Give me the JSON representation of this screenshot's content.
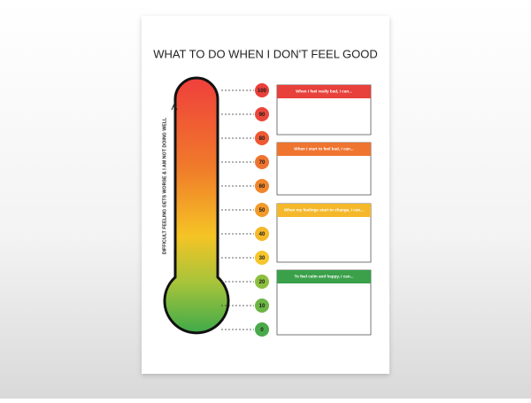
{
  "title": "WHAT TO DO WHEN I DON'T FEEL GOOD",
  "side_label": "DIFFICULT FEELING GETS WORSE & I AM NOT DOING WELL",
  "scale": [
    {
      "label": 100,
      "color": "#e8403a"
    },
    {
      "label": 90,
      "color": "#e9473a"
    },
    {
      "label": 80,
      "color": "#ec5a33"
    },
    {
      "label": 70,
      "color": "#ef7430"
    },
    {
      "label": 60,
      "color": "#f0862c"
    },
    {
      "label": 50,
      "color": "#f29a2a"
    },
    {
      "label": 40,
      "color": "#f4b82a"
    },
    {
      "label": 30,
      "color": "#f5c62e"
    },
    {
      "label": 20,
      "color": "#8cbf3f"
    },
    {
      "label": 10,
      "color": "#6db545"
    },
    {
      "label": 0,
      "color": "#4aa94a"
    }
  ],
  "sections": [
    {
      "header": "When I feel really bad, I can...",
      "color": "#e8403a"
    },
    {
      "header": "When I start to feel bad, I can...",
      "color": "#ef7430"
    },
    {
      "header": "When my feelings start to change, I can...",
      "color": "#f4b82a"
    },
    {
      "header": "To feel calm and happy, I can...",
      "color": "#3aa04a"
    }
  ]
}
